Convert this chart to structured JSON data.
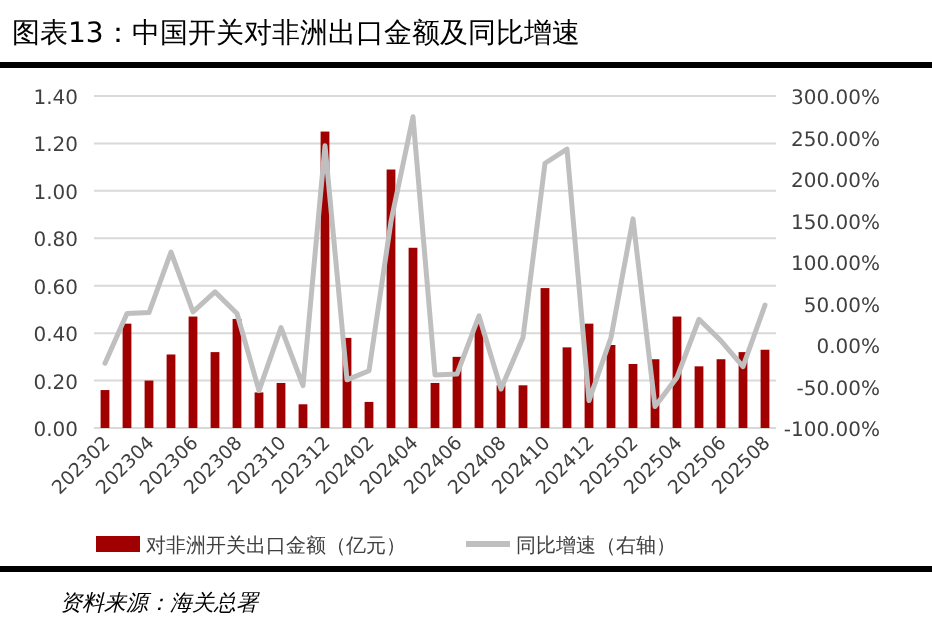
{
  "chart_data": {
    "type": "bar",
    "title": "图表13：中国开关对非洲出口金额及同比增速",
    "categories": [
      "202302",
      null,
      "202304",
      null,
      "202306",
      null,
      "202308",
      null,
      "202310",
      null,
      "202312",
      null,
      "202402",
      null,
      "202404",
      null,
      "202406",
      null,
      "202408",
      null,
      "202410",
      null,
      "202412",
      null,
      "202502",
      null,
      "202504",
      null,
      "202506",
      null,
      "202508"
    ],
    "series": [
      {
        "name": "对非洲开关出口金额（亿元）",
        "color": "#a00000",
        "values": [
          0.16,
          0.44,
          0.2,
          0.31,
          0.47,
          0.32,
          0.46,
          0.15,
          0.19,
          0.1,
          1.25,
          0.38,
          0.11,
          1.09,
          0.76,
          0.19,
          0.3,
          0.44,
          0.18,
          0.18,
          0.59,
          0.34,
          0.44,
          0.35,
          0.27,
          0.29,
          0.47,
          0.26,
          0.29,
          0.32,
          0.33
        ]
      },
      {
        "name": "同比增速（右轴）",
        "type": "line",
        "axis": "y2",
        "color": "#bfbfbf",
        "values": [
          -22,
          38,
          39,
          112,
          40,
          64,
          38,
          -55,
          21,
          -49,
          240,
          -42,
          -31,
          149,
          275,
          -36,
          -35,
          35,
          -53,
          9,
          219,
          236,
          -67,
          9,
          152,
          -74,
          -39,
          31,
          5,
          -26,
          48
        ]
      }
    ],
    "ylim": [
      0,
      1.4
    ],
    "yticks": [
      {
        "value": 0,
        "label": "0.00"
      },
      {
        "value": 0.2,
        "label": "0.20"
      },
      {
        "value": 0.4,
        "label": "0.40"
      },
      {
        "value": 0.6,
        "label": "0.60"
      },
      {
        "value": 0.8,
        "label": "0.80"
      },
      {
        "value": 1.0,
        "label": "1.00"
      },
      {
        "value": 1.2,
        "label": "1.20"
      },
      {
        "value": 1.4,
        "label": "1.40"
      }
    ],
    "y2lim": [
      -100,
      300
    ],
    "y2ticks": [
      {
        "value": -100,
        "label": "-100.00%"
      },
      {
        "value": -50,
        "label": "-50.00%"
      },
      {
        "value": 0,
        "label": "0.00%"
      },
      {
        "value": 50,
        "label": "50.00%"
      },
      {
        "value": 100,
        "label": "100.00%"
      },
      {
        "value": 150,
        "label": "150.00%"
      },
      {
        "value": 200,
        "label": "200.00%"
      },
      {
        "value": 250,
        "label": "250.00%"
      },
      {
        "value": 300,
        "label": "300.00%"
      }
    ],
    "grid": "y",
    "legend": "bottom",
    "annotations": [
      "资料来源：海关总署"
    ]
  }
}
